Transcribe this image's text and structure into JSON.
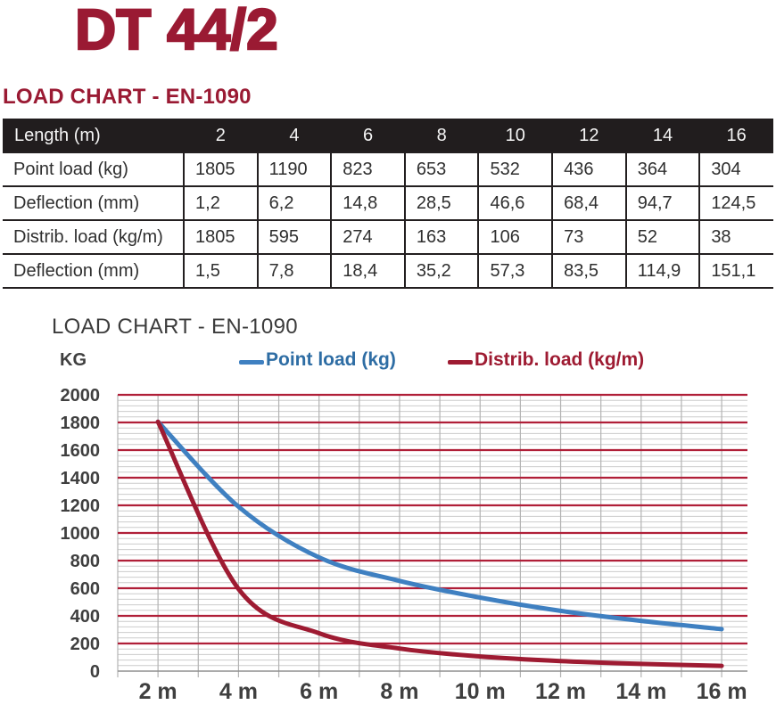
{
  "page": {
    "title": "DT 44/2"
  },
  "section": {
    "heading": "LOAD CHART - EN-1090"
  },
  "table": {
    "header_label": "Length (m)",
    "lengths": [
      "2",
      "4",
      "6",
      "8",
      "10",
      "12",
      "14",
      "16"
    ],
    "rows": [
      {
        "label": "Point load (kg)",
        "values": [
          "1805",
          "1190",
          "823",
          "653",
          "532",
          "436",
          "364",
          "304"
        ]
      },
      {
        "label": "Deflection (mm)",
        "values": [
          "1,2",
          "6,2",
          "14,8",
          "28,5",
          "46,6",
          "68,4",
          "94,7",
          "124,5"
        ]
      },
      {
        "label": "Distrib. load (kg/m)",
        "values": [
          "1805",
          "595",
          "274",
          "163",
          "106",
          "73",
          "52",
          "38"
        ]
      },
      {
        "label": "Deflection (mm)",
        "values": [
          "1,5",
          "7,8",
          "18,4",
          "35,2",
          "57,3",
          "83,5",
          "114,9",
          "151,1"
        ]
      }
    ]
  },
  "chart": {
    "title": "LOAD CHART - EN-1090",
    "y_unit": "KG",
    "legend": [
      {
        "label": "Point load (kg)",
        "color": "#3f80c1",
        "text_color": "#2e6da4"
      },
      {
        "label": "Distrib. load (kg/m)",
        "color": "#9e1b32",
        "text_color": "#9e1b32"
      }
    ]
  },
  "chart_data": {
    "type": "line",
    "x": [
      2,
      4,
      6,
      8,
      10,
      12,
      14,
      16
    ],
    "x_tick_labels": [
      "2 m",
      "4 m",
      "6 m",
      "8 m",
      "10 m",
      "12 m",
      "14 m",
      "16 m"
    ],
    "series": [
      {
        "name": "Point load (kg)",
        "color": "#3f80c1",
        "values": [
          1805,
          1190,
          823,
          653,
          532,
          436,
          364,
          304
        ]
      },
      {
        "name": "Distrib. load (kg/m)",
        "color": "#9e1b32",
        "values": [
          1805,
          595,
          274,
          163,
          106,
          73,
          52,
          38
        ]
      }
    ],
    "title": "LOAD CHART - EN-1090",
    "ylabel": "KG",
    "ylim": [
      0,
      2000
    ],
    "y_major_step": 200,
    "y_minor_step": 40,
    "y_ticks": [
      0,
      200,
      400,
      600,
      800,
      1000,
      1200,
      1400,
      1600,
      1800,
      2000
    ],
    "x_axis_range": [
      1,
      16.65
    ],
    "x_gridline_step_m": 1,
    "grid": {
      "major_color": "#b01f38",
      "minor_color": "#cbcbcb",
      "vertical_color": "#b3b3b3",
      "zero_axis_color": "#8f8f8f"
    },
    "tick_label_color": "#3f3f3f",
    "legend_position": "top",
    "smooth_lines": true
  },
  "colors": {
    "brand_red": "#9a1a33",
    "table_header_bg": "#211d1e",
    "table_border": "#231f20",
    "body_text": "#2f2f2f"
  }
}
